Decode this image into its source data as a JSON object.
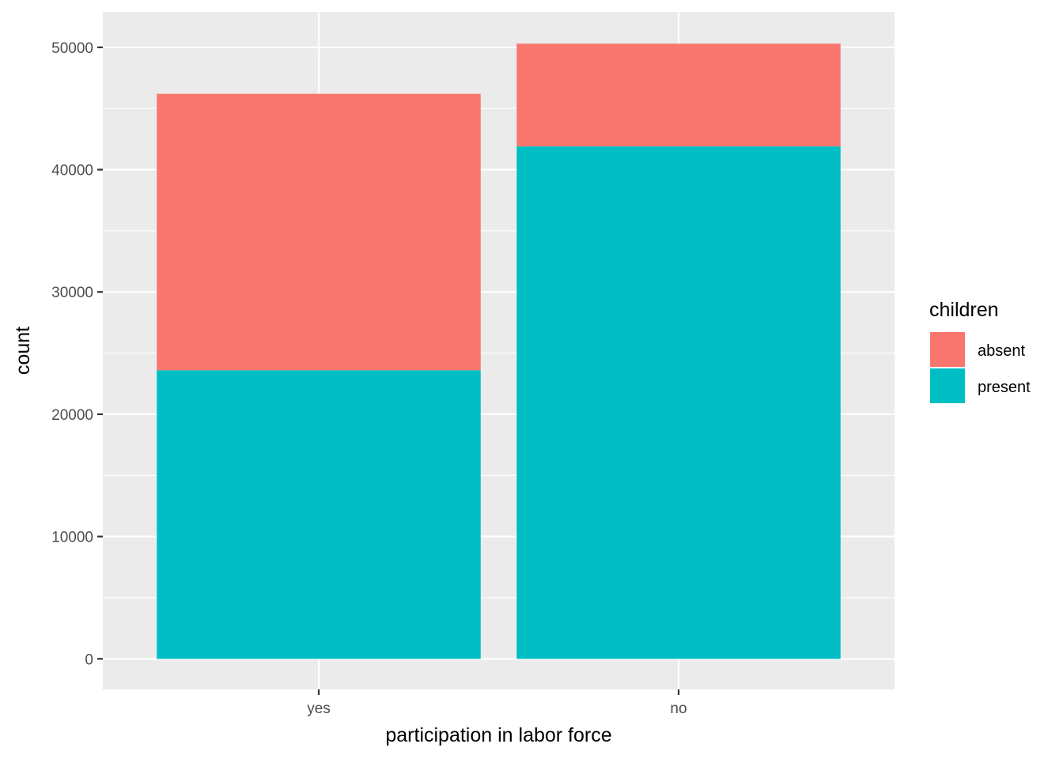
{
  "chart_data": {
    "type": "bar",
    "stacked": true,
    "title": "",
    "xlabel": "participation in labor force",
    "ylabel": "count",
    "categories": [
      "yes",
      "no"
    ],
    "series": [
      {
        "name": "present",
        "values": [
          23600,
          41900
        ],
        "color": "#00BFC4"
      },
      {
        "name": "absent",
        "values": [
          22600,
          8400
        ],
        "color": "#F8766D"
      }
    ],
    "ylim": [
      -2500,
      52900
    ],
    "yticks": [
      0,
      10000,
      20000,
      30000,
      40000,
      50000
    ],
    "ytick_labels": [
      "0",
      "10000",
      "20000",
      "30000",
      "40000",
      "50000"
    ],
    "grid": true,
    "legend": {
      "title": "children",
      "position": "right",
      "entries": [
        {
          "label": "absent",
          "color": "#F8766D"
        },
        {
          "label": "present",
          "color": "#00BFC4"
        }
      ]
    },
    "panel_background": "#EBEBEB",
    "grid_color": "#FFFFFF"
  }
}
